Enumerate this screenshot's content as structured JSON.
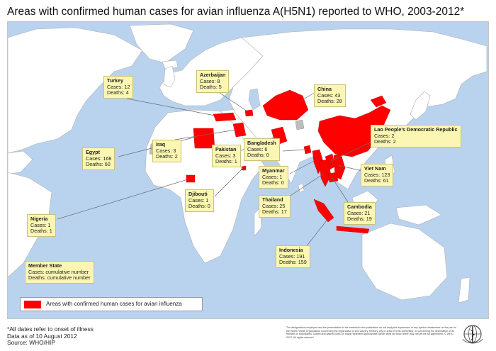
{
  "title": "Areas with confirmed human cases for avian influenza A(H5N1) reported to WHO, 2003-2012*",
  "colors": {
    "ocean": "#b9d3ef",
    "land": "#ffffff",
    "affected": "#ff0000",
    "nodata": "#bdbdbd",
    "callout": "#fbf7b2"
  },
  "callouts": [
    {
      "id": "turkey",
      "name": "Turkey",
      "cases": "Cases: 12",
      "deaths": "Deaths: 4"
    },
    {
      "id": "azerbaijan",
      "name": "Azerbaijan",
      "cases": "Cases: 8",
      "deaths": "Deaths: 5"
    },
    {
      "id": "china",
      "name": "China",
      "cases": "Cases: 43",
      "deaths": "Deaths: 28"
    },
    {
      "id": "laos",
      "name": "Lao People's Democratic Republic",
      "cases": "Cases: 2",
      "deaths": "Deaths: 2"
    },
    {
      "id": "egypt",
      "name": "Egypt",
      "cases": "Cases: 168",
      "deaths": "Deaths: 60"
    },
    {
      "id": "iraq",
      "name": "Iraq",
      "cases": "Cases: 3",
      "deaths": "Deaths: 2"
    },
    {
      "id": "pakistan",
      "name": "Pakistan",
      "cases": "Cases: 3",
      "deaths": "Deaths: 1"
    },
    {
      "id": "bangladesh",
      "name": "Bangladesh",
      "cases": "Cases: 6",
      "deaths": "Deaths: 0"
    },
    {
      "id": "myanmar",
      "name": "Myanmar",
      "cases": "Cases: 1",
      "deaths": "Deaths: 0"
    },
    {
      "id": "vietnam",
      "name": "Viet Nam",
      "cases": "Cases: 123",
      "deaths": "Deaths: 61"
    },
    {
      "id": "djibouti",
      "name": "Djibouti",
      "cases": "Cases: 1",
      "deaths": "Deaths: 0"
    },
    {
      "id": "thailand",
      "name": "Thailand",
      "cases": "Cases: 25",
      "deaths": "Deaths: 17"
    },
    {
      "id": "cambodia",
      "name": "Cambodia",
      "cases": "Cases: 21",
      "deaths": "Deaths: 19"
    },
    {
      "id": "nigeria",
      "name": "Nigeria",
      "cases": "Cases: 1",
      "deaths": "Deaths: 1"
    },
    {
      "id": "indonesia",
      "name": "Indonesia",
      "cases": "Cases: 191",
      "deaths": "Deaths: 159"
    },
    {
      "id": "memberstate",
      "name": "Member State",
      "cases": "Cases: cumulative number",
      "deaths": "Deaths: cumulative number"
    }
  ],
  "legend": {
    "label": "Areas with confirmed human cases for avian influenza"
  },
  "footer": {
    "note": "*All dates refer to onset of illness",
    "date": "Data as of 10 August 2012",
    "source": "Source: WHO/HIP"
  },
  "disclaimer": "The designations employed and the presentation of the material in this publication do not imply the expression of any opinion whatsoever on the part of the World Health Organization concerning the legal status of any country, territory, city or area or of its authorities, or concerning the delimitation of its frontiers or boundaries. Dotted and dashed lines on maps represent approximate border lines for which there may not yet be full agreement. © WHO 2012. All rights reserved"
}
